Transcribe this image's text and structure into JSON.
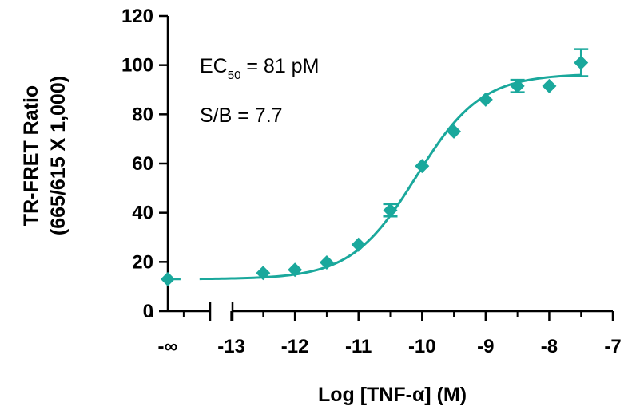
{
  "chart_data": {
    "type": "scatter",
    "xlabel": "Log [TNF-α] (M)",
    "ylabel_lines": [
      "TR-FRET Ratio",
      "(665/615 X 1,000)"
    ],
    "ylim": [
      0,
      120
    ],
    "yticks": [
      0,
      20,
      40,
      60,
      80,
      100,
      120
    ],
    "xlim": [
      -14,
      -7
    ],
    "xticks": [
      {
        "value": -14,
        "label": "-∞"
      },
      {
        "value": -13,
        "label": "-13"
      },
      {
        "value": -12,
        "label": "-12"
      },
      {
        "value": -11,
        "label": "-11"
      },
      {
        "value": -10,
        "label": "-10"
      },
      {
        "value": -9,
        "label": "-9"
      },
      {
        "value": -8,
        "label": "-8"
      },
      {
        "value": -7,
        "label": "-7"
      }
    ],
    "axis_break": true,
    "grid": false,
    "color": "#1aa89c",
    "points": [
      {
        "x": -14,
        "x_label": "-∞",
        "y": 13,
        "err": 0
      },
      {
        "x": -12.5,
        "y": 15.5,
        "err": 0
      },
      {
        "x": -12,
        "y": 16.8,
        "err": 0
      },
      {
        "x": -11.5,
        "y": 19.8,
        "err": 0
      },
      {
        "x": -11,
        "y": 27,
        "err": 0
      },
      {
        "x": -10.5,
        "y": 41,
        "err": 2.5
      },
      {
        "x": -10,
        "y": 59,
        "err": 0
      },
      {
        "x": -9.5,
        "y": 73,
        "err": 0
      },
      {
        "x": -9,
        "y": 86,
        "err": 0
      },
      {
        "x": -8.5,
        "y": 91.5,
        "err": 2.5
      },
      {
        "x": -8,
        "y": 91.5,
        "err": 0
      },
      {
        "x": -7.5,
        "y": 101,
        "err": 5.5
      }
    ],
    "fit": {
      "model": "4PL",
      "bottom": 13,
      "top": 96.5,
      "log_ec50": -10.09,
      "hill": 0.85,
      "x_start": -14,
      "x_end": -7.5,
      "break_between": [
        -13.8,
        -13.5
      ]
    },
    "annotations": {
      "ec50": {
        "prefix": "EC",
        "subscript": "50",
        "suffix": " = 81 pM"
      },
      "sb": "S/B = 7.7"
    }
  }
}
